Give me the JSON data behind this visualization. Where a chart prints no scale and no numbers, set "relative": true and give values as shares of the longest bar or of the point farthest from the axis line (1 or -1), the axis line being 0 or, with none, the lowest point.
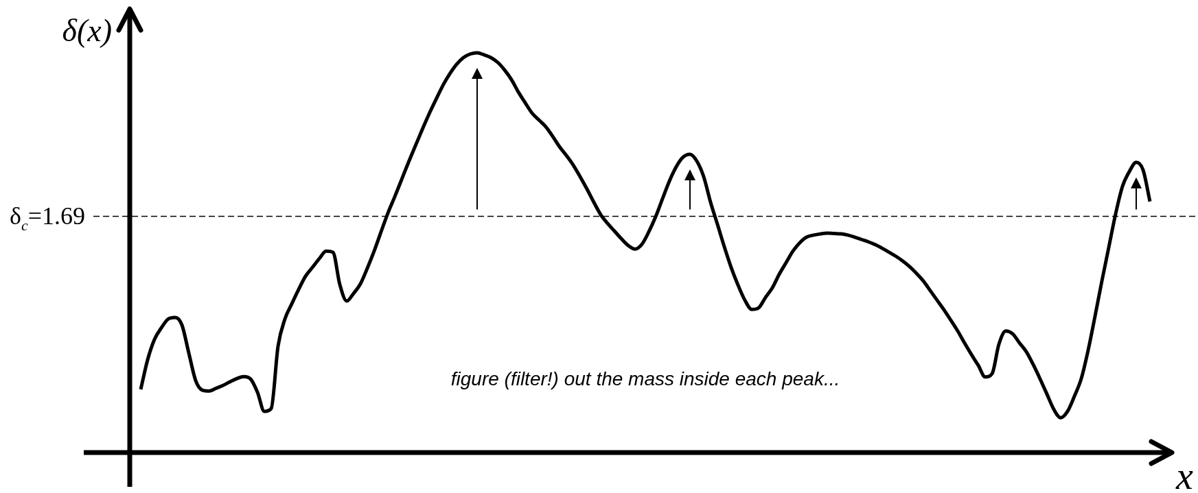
{
  "chart_data": {
    "type": "line",
    "relative": true,
    "ylabel": "δ(x)",
    "xlabel": "x",
    "categories": [
      null,
      null,
      null,
      null,
      null,
      null,
      null,
      null,
      null,
      null,
      null,
      null,
      null,
      null,
      null,
      null,
      null,
      null,
      null,
      null,
      null,
      null,
      null,
      null,
      null,
      null,
      null,
      null,
      null,
      null,
      null,
      null,
      null,
      null,
      null,
      null,
      null,
      null,
      null,
      null,
      null,
      null,
      null,
      null,
      null,
      null,
      null,
      null,
      null,
      null,
      null,
      null,
      null,
      null,
      null,
      null,
      null,
      null,
      null,
      null,
      null,
      null,
      null,
      null,
      null,
      null,
      null,
      null,
      null,
      null,
      null,
      null,
      null,
      null,
      null,
      null,
      null,
      null,
      null,
      null,
      null,
      null,
      null,
      null,
      null,
      null,
      null,
      null,
      null,
      null,
      null,
      null,
      null,
      null,
      null,
      null,
      null,
      null,
      null,
      null,
      null,
      null,
      null,
      null,
      null,
      null,
      null,
      null,
      null,
      null,
      null,
      null,
      null,
      null,
      null,
      null,
      null,
      null,
      null,
      null,
      null,
      null,
      null,
      null,
      null,
      null,
      null,
      null,
      null,
      null,
      null,
      null,
      null,
      null,
      null,
      null,
      null,
      null,
      null,
      null,
      null,
      null,
      null,
      null,
      null,
      null,
      null,
      null
    ],
    "series": [
      {
        "color": "#000000",
        "values": [
          0.158,
          0.232,
          0.283,
          0.312,
          0.334,
          0.338,
          0.319,
          0.249,
          0.18,
          0.156,
          0.154,
          0.161,
          0.168,
          0.177,
          0.185,
          0.19,
          0.184,
          0.151,
          0.103,
          0.11,
          0.266,
          0.334,
          0.372,
          0.408,
          0.441,
          0.463,
          0.485,
          0.504,
          0.501,
          0.42,
          0.379,
          0.398,
          0.422,
          0.461,
          0.504,
          0.552,
          0.599,
          0.64,
          0.683,
          0.726,
          0.767,
          0.808,
          0.847,
          0.883,
          0.918,
          0.947,
          0.971,
          0.988,
          0.997,
          1,
          0.995,
          0.988,
          0.976,
          0.957,
          0.933,
          0.902,
          0.875,
          0.849,
          0.832,
          0.815,
          0.791,
          0.765,
          0.743,
          0.719,
          0.69,
          0.659,
          0.626,
          0.595,
          0.573,
          0.554,
          0.535,
          0.518,
          0.509,
          0.521,
          0.552,
          0.59,
          0.635,
          0.679,
          0.715,
          0.739,
          0.746,
          0.729,
          0.69,
          0.626,
          0.571,
          0.515,
          0.463,
          0.419,
          0.381,
          0.358,
          0.362,
          0.388,
          0.412,
          0.446,
          0.475,
          0.504,
          0.525,
          0.539,
          0.544,
          0.547,
          0.549,
          0.548,
          0.547,
          0.544,
          0.539,
          0.533,
          0.527,
          0.52,
          0.511,
          0.501,
          0.491,
          0.479,
          0.465,
          0.448,
          0.429,
          0.405,
          0.381,
          0.357,
          0.331,
          0.304,
          0.274,
          0.245,
          0.218,
          0.189,
          0.197,
          0.271,
          0.304,
          0.297,
          0.274,
          0.252,
          0.22,
          0.184,
          0.146,
          0.108,
          0.087,
          0.103,
          0.141,
          0.185,
          0.256,
          0.341,
          0.429,
          0.513,
          0.597,
          0.666,
          0.703,
          0.726,
          0.707,
          0.628
        ]
      }
    ],
    "ref_lines": [
      {
        "axis": "y",
        "value": 0.591,
        "color": "#000000",
        "line_style": "dashed"
      }
    ],
    "annotations": [
      "δ$_{c}$=1.69",
      "figure (filter!) out the mass inside each peak..."
    ]
  }
}
